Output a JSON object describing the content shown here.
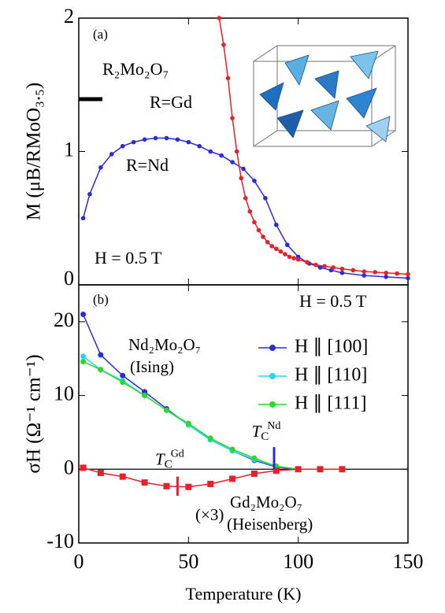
{
  "chart_data": [
    {
      "type": "line",
      "panel_label": "(a)",
      "ylabel": "M (μB/RMoO₃.₅)",
      "xlim": [
        0,
        150
      ],
      "xticks": [
        0,
        50,
        100,
        150
      ],
      "ylim": [
        0,
        2
      ],
      "yticks": [
        0,
        1,
        2
      ],
      "annotations": [
        "R₂Mo₂O₇",
        "R=Gd",
        "R=Nd",
        "H = 0.5 T"
      ],
      "series": [
        {
          "color": "#2b2bdc",
          "marker": "circle",
          "x": [
            2,
            5,
            10,
            15,
            20,
            25,
            30,
            35,
            40,
            45,
            50,
            55,
            60,
            65,
            70,
            75,
            80,
            85,
            90,
            95,
            100,
            105,
            110,
            115,
            120,
            130,
            140,
            150
          ],
          "values": [
            0.5,
            0.68,
            0.88,
            0.98,
            1.04,
            1.07,
            1.09,
            1.1,
            1.1,
            1.09,
            1.07,
            1.04,
            1.0,
            0.97,
            0.92,
            0.87,
            0.78,
            0.65,
            0.45,
            0.3,
            0.21,
            0.16,
            0.13,
            0.11,
            0.09,
            0.07,
            0.06,
            0.05
          ]
        },
        {
          "color": "#e8202a",
          "marker": "circle",
          "x": [
            64,
            66,
            68,
            70,
            72,
            74,
            76,
            78,
            80,
            82,
            84,
            86,
            88,
            90,
            92,
            94,
            96,
            98,
            100,
            104,
            108,
            112,
            116,
            120,
            125,
            130,
            135,
            140,
            145,
            150
          ],
          "values": [
            2.0,
            1.8,
            1.55,
            1.25,
            1.0,
            0.8,
            0.65,
            0.55,
            0.47,
            0.41,
            0.36,
            0.32,
            0.29,
            0.27,
            0.25,
            0.23,
            0.21,
            0.2,
            0.19,
            0.17,
            0.15,
            0.14,
            0.13,
            0.12,
            0.11,
            0.1,
            0.095,
            0.09,
            0.085,
            0.08
          ]
        }
      ]
    },
    {
      "type": "line",
      "panel_label": "(b)",
      "ylabel": "σH (Ω⁻¹ cm⁻¹)",
      "xlabel": "Temperature (K)",
      "xlim": [
        0,
        150
      ],
      "xticks": [
        0,
        50,
        100,
        150
      ],
      "ylim": [
        -10,
        25
      ],
      "yticks": [
        -10,
        0,
        10,
        20
      ],
      "legend": "upper right",
      "annotations": [
        "H = 0.5 T",
        "Nd₂Mo₂O₇",
        "(Ising)",
        "Gd₂Mo₂O₇",
        "(Heisenberg)",
        "(×3)"
      ],
      "tc_markers": [
        {
          "x": 45,
          "color": "#e8202a",
          "label": [
            "T",
            "C",
            "Gd"
          ]
        },
        {
          "x": 89,
          "color": "#2b2bdc",
          "label": [
            "T",
            "C",
            "Nd"
          ]
        }
      ],
      "series": [
        {
          "name": "H ∥ [100]",
          "color": "#2b2bdc",
          "marker": "circle",
          "x": [
            2,
            10,
            20,
            30,
            40,
            50,
            60,
            70,
            80,
            90,
            100
          ],
          "values": [
            21,
            15.5,
            12.7,
            10.5,
            8.2,
            6.0,
            4.0,
            2.5,
            1.2,
            0.3,
            0
          ]
        },
        {
          "name": "H ∥ [110]",
          "color": "#22d8f0",
          "marker": "circle",
          "x": [
            2,
            10,
            20,
            30,
            40,
            50,
            60,
            70,
            80,
            90,
            100
          ],
          "values": [
            15.3,
            13.5,
            12,
            10,
            8,
            6,
            4,
            2.5,
            1.3,
            0.4,
            0
          ]
        },
        {
          "name": "H ∥ [111]",
          "color": "#2fd62f",
          "marker": "circle",
          "x": [
            2,
            10,
            20,
            30,
            40,
            50,
            60,
            70,
            80,
            90,
            100
          ],
          "values": [
            14.6,
            13.5,
            11.8,
            10,
            8,
            6.2,
            4.2,
            2.7,
            1.5,
            0.4,
            0
          ]
        },
        {
          "color": "#e8202a",
          "marker": "square",
          "x": [
            2,
            10,
            20,
            30,
            40,
            50,
            60,
            70,
            80,
            90,
            100,
            110,
            120
          ],
          "values": [
            0.2,
            -0.5,
            -1.0,
            -1.8,
            -2.3,
            -2.4,
            -2.0,
            -1.3,
            -0.6,
            -0.2,
            0,
            0,
            0
          ]
        }
      ]
    }
  ]
}
